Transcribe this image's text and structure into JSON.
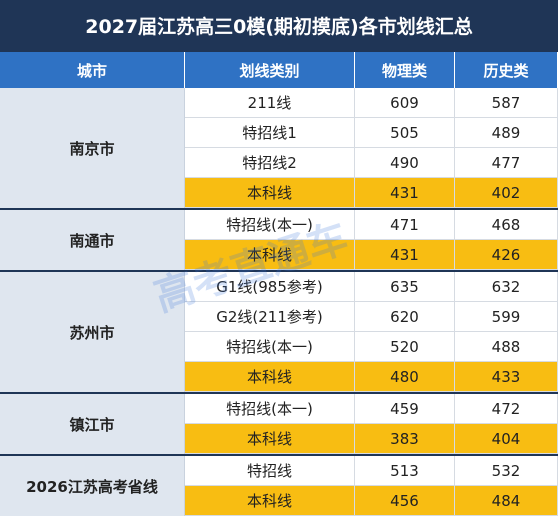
{
  "title": "2027届江苏高三0模(期初摸底)各市划线汇总",
  "watermark": "高考直通车",
  "table": {
    "headers": [
      "城市",
      "划线类别",
      "物理类",
      "历史类"
    ],
    "groups": [
      {
        "city": "南京市",
        "rows": [
          {
            "type": "211线",
            "physics": 609,
            "history": 587,
            "highlight": false
          },
          {
            "type": "特招线1",
            "physics": 505,
            "history": 489,
            "highlight": false
          },
          {
            "type": "特招线2",
            "physics": 490,
            "history": 477,
            "highlight": false
          },
          {
            "type": "本科线",
            "physics": 431,
            "history": 402,
            "highlight": true
          }
        ]
      },
      {
        "city": "南通市",
        "rows": [
          {
            "type": "特招线(本一)",
            "physics": 471,
            "history": 468,
            "highlight": false
          },
          {
            "type": "本科线",
            "physics": 431,
            "history": 426,
            "highlight": true
          }
        ]
      },
      {
        "city": "苏州市",
        "rows": [
          {
            "type": "G1线(985参考)",
            "physics": 635,
            "history": 632,
            "highlight": false
          },
          {
            "type": "G2线(211参考)",
            "physics": 620,
            "history": 599,
            "highlight": false
          },
          {
            "type": "特招线(本一)",
            "physics": 520,
            "history": 488,
            "highlight": false
          },
          {
            "type": "本科线",
            "physics": 480,
            "history": 433,
            "highlight": true
          }
        ]
      },
      {
        "city": "镇江市",
        "rows": [
          {
            "type": "特招线(本一)",
            "physics": 459,
            "history": 472,
            "highlight": false
          },
          {
            "type": "本科线",
            "physics": 383,
            "history": 404,
            "highlight": true
          }
        ]
      },
      {
        "city": "2026江苏高考省线",
        "rows": [
          {
            "type": "特招线",
            "physics": 513,
            "history": 532,
            "highlight": false
          },
          {
            "type": "本科线",
            "physics": 456,
            "history": 484,
            "highlight": true
          }
        ]
      }
    ]
  }
}
